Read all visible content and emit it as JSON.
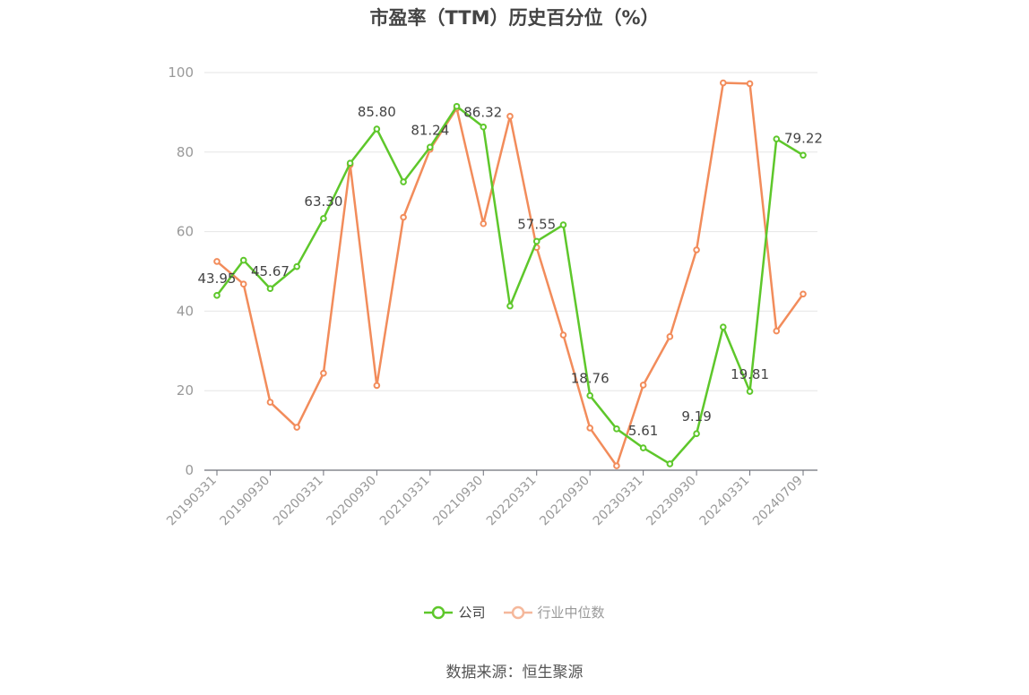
{
  "title": "市盈率（TTM）历史百分位（%）",
  "source": "数据来源：恒生聚源",
  "colors": {
    "company": "#5ec72b",
    "industry": "#f28c5b",
    "grid": "#e6e6e6",
    "axis": "#6e7079",
    "label": "#999999"
  },
  "chart_data": {
    "type": "line",
    "title": "市盈率（TTM）历史百分位（%）",
    "ylim": [
      0,
      100
    ],
    "yticks": [
      0,
      20,
      40,
      60,
      80,
      100
    ],
    "grid": true,
    "legend_position": "bottom",
    "x_tick_labels": [
      "20190331",
      "20190930",
      "20200331",
      "20200930",
      "20210331",
      "20210930",
      "20220331",
      "20220930",
      "20230331",
      "20230930",
      "20240331",
      "20240709"
    ],
    "tick_point_indexes": [
      0,
      2,
      4,
      6,
      8,
      10,
      12,
      14,
      16,
      18,
      20,
      22
    ],
    "series": [
      {
        "name": "公司",
        "values": [
          43.95,
          52.8,
          45.67,
          51.2,
          63.3,
          77.2,
          85.8,
          72.5,
          81.24,
          91.5,
          86.32,
          41.3,
          57.55,
          61.7,
          18.76,
          10.4,
          5.61,
          1.6,
          9.19,
          36.0,
          19.81,
          83.3,
          79.22
        ],
        "labels": [
          "43.95",
          "",
          "45.67",
          "",
          "63.30",
          "",
          "85.80",
          "",
          "81.24",
          "",
          "86.32",
          "",
          "57.55",
          "",
          "18.76",
          "",
          "5.61",
          "",
          "9.19",
          "",
          "19.81",
          "",
          "79.22"
        ]
      },
      {
        "name": "行业中位数",
        "values": [
          52.5,
          46.8,
          17.1,
          10.8,
          24.4,
          76.8,
          21.3,
          63.6,
          80.7,
          91.0,
          62.0,
          89.0,
          56.0,
          34.0,
          10.6,
          1.1,
          21.4,
          33.6,
          55.4,
          97.4,
          97.2,
          35.0,
          44.3
        ]
      }
    ]
  }
}
